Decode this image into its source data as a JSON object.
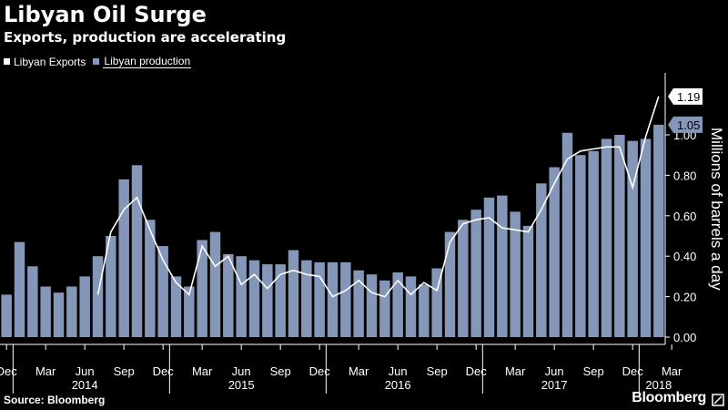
{
  "header": {
    "title": "Libyan Oil Surge",
    "subtitle": "Exports, production are accelerating"
  },
  "legend": {
    "exports_label": "Libyan Exports",
    "production_label": "Libyan production"
  },
  "footer": {
    "source": "Source: Bloomberg",
    "brand": "Bloomberg"
  },
  "colors": {
    "background": "#000000",
    "bar": "#8497b8",
    "line": "#ffffff",
    "text": "#ffffff",
    "gridline": "#555555"
  },
  "chart_data": {
    "type": "bar",
    "title": "Libyan Oil Surge",
    "subtitle": "Exports, production are accelerating",
    "ylabel": "Millions of barrels a day",
    "ylim": [
      0,
      1.3
    ],
    "yticks": [
      0.0,
      0.2,
      0.4,
      0.6,
      0.8,
      1.0
    ],
    "ytick_labels": [
      "0.00",
      "0.20",
      "0.40",
      "0.60",
      "0.80",
      "1.00"
    ],
    "x_month_labels": [
      "Dec",
      "Mar",
      "Jun",
      "Sep",
      "Dec",
      "Mar",
      "Jun",
      "Sep",
      "Dec",
      "Mar",
      "Jun",
      "Sep",
      "Dec",
      "Mar",
      "Jun",
      "Sep",
      "Dec",
      "Mar"
    ],
    "x_month_label_index": [
      0,
      3,
      6,
      9,
      12,
      15,
      18,
      21,
      24,
      27,
      30,
      33,
      36,
      39,
      42,
      45,
      48,
      51
    ],
    "year_labels": [
      "2014",
      "2015",
      "2016",
      "2017",
      "2018"
    ],
    "year_label_index": [
      6,
      18,
      30,
      42,
      50
    ],
    "year_separator_index": [
      1,
      13,
      25,
      37,
      49
    ],
    "categories_start": "Dec 2013",
    "series": [
      {
        "name": "Libyan production",
        "type": "bar",
        "values": [
          0.21,
          0.47,
          0.35,
          0.25,
          0.22,
          0.25,
          0.3,
          0.4,
          0.5,
          0.78,
          0.85,
          0.58,
          0.45,
          0.3,
          0.25,
          0.48,
          0.52,
          0.41,
          0.4,
          0.38,
          0.36,
          0.36,
          0.43,
          0.38,
          0.37,
          0.37,
          0.37,
          0.33,
          0.31,
          0.28,
          0.32,
          0.3,
          0.26,
          0.34,
          0.52,
          0.58,
          0.63,
          0.69,
          0.7,
          0.62,
          0.55,
          0.76,
          0.84,
          1.01,
          0.9,
          0.92,
          0.98,
          1.0,
          0.97,
          0.98,
          1.05
        ]
      },
      {
        "name": "Libyan Exports",
        "type": "line",
        "values": [
          null,
          null,
          null,
          null,
          null,
          null,
          null,
          0.21,
          0.52,
          0.63,
          0.69,
          0.53,
          0.38,
          0.27,
          0.21,
          0.45,
          0.35,
          0.4,
          0.26,
          0.31,
          0.24,
          0.31,
          0.33,
          0.31,
          0.3,
          0.2,
          0.23,
          0.28,
          0.22,
          0.2,
          0.28,
          0.21,
          0.27,
          0.23,
          0.47,
          0.56,
          0.58,
          0.59,
          0.54,
          0.53,
          0.52,
          0.63,
          0.76,
          0.88,
          0.92,
          0.93,
          0.94,
          0.94,
          0.74,
          0.99,
          1.19
        ]
      }
    ],
    "end_labels": [
      {
        "series": "Libyan Exports",
        "text": "1.19"
      },
      {
        "series": "Libyan production",
        "text": "1.05"
      }
    ]
  }
}
